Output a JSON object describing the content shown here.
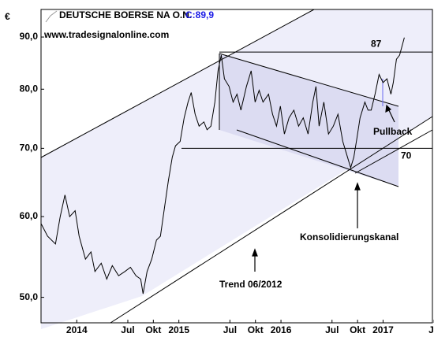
{
  "chart_data": {
    "type": "line",
    "currency": "€",
    "title": "DEUTSCHE BOERSE NA O.N.",
    "last_label": "C:89,9",
    "subtitle": "www.tradesignalonline.com",
    "color": "#000000",
    "log_scale": true,
    "x": [
      -4.17,
      -3.43,
      -2.5,
      -1.95,
      -1.39,
      -0.83,
      -0.19,
      0.28,
      1.02,
      1.67,
      2.13,
      2.88,
      3.53,
      4.17,
      4.92,
      5.66,
      6.31,
      6.96,
      7.51,
      7.79,
      8.26,
      8.81,
      9.37,
      9.83,
      10.3,
      10.76,
      11.22,
      11.6,
      12.15,
      12.62,
      13.08,
      13.45,
      13.91,
      14.38,
      14.94,
      15.31,
      15.77,
      16.23,
      16.6,
      16.98,
      17.35,
      17.9,
      18.37,
      18.83,
      19.29,
      19.94,
      20.5,
      20.96,
      21.43,
      21.89,
      22.54,
      23.01,
      23.47,
      23.93,
      24.4,
      24.95,
      25.51,
      26.07,
      26.62,
      27.18,
      27.74,
      28.11,
      28.48,
      29.04,
      29.59,
      30.15,
      30.7,
      31.26,
      31.82,
      32.19,
      32.56,
      32.93,
      33.3,
      33.86,
      34.23,
      34.6,
      35.06,
      35.53,
      35.99,
      36.46,
      36.92,
      37.2,
      37.57,
      37.94,
      38.31,
      38.5
    ],
    "values": [
      59.0,
      57.4,
      56.4,
      60.0,
      63.0,
      60.0,
      60.8,
      57.4,
      54.5,
      55.4,
      53.0,
      54.0,
      52.1,
      53.7,
      52.5,
      53.0,
      53.5,
      52.5,
      52.1,
      50.4,
      53.0,
      54.5,
      56.9,
      57.4,
      61.1,
      65.0,
      68.6,
      70.4,
      71.1,
      75.0,
      77.7,
      79.4,
      75.6,
      73.6,
      74.3,
      73.0,
      73.6,
      77.7,
      83.4,
      86.4,
      81.9,
      80.5,
      77.7,
      79.1,
      76.3,
      80.5,
      83.4,
      77.7,
      79.8,
      77.7,
      79.1,
      75.6,
      73.6,
      77.0,
      72.3,
      75.0,
      76.3,
      73.6,
      75.0,
      72.3,
      77.7,
      80.5,
      73.6,
      77.7,
      72.3,
      73.6,
      75.6,
      71.1,
      68.6,
      67.0,
      68.6,
      71.7,
      75.0,
      77.7,
      76.3,
      76.3,
      79.1,
      82.7,
      81.2,
      81.9,
      79.1,
      81.2,
      85.6,
      86.4,
      88.7,
      89.9
    ],
    "xlim": [
      -4.2,
      41.8
    ],
    "xticks": [
      {
        "value": 0,
        "label": "2014"
      },
      {
        "value": 6,
        "label": "Jul"
      },
      {
        "value": 9,
        "label": "Okt"
      },
      {
        "value": 12,
        "label": "2015"
      },
      {
        "value": 18,
        "label": "Jul"
      },
      {
        "value": 21,
        "label": "Okt"
      },
      {
        "value": 24,
        "label": "2016"
      },
      {
        "value": 30,
        "label": "Jul"
      },
      {
        "value": 33,
        "label": "Okt"
      },
      {
        "value": 36,
        "label": "2017"
      },
      {
        "value": 42,
        "label": "Ju"
      }
    ],
    "ylim": [
      47.2,
      93.1
    ],
    "yticks": [
      {
        "value": 50,
        "label": "50,0"
      },
      {
        "value": 60,
        "label": "60,0"
      },
      {
        "value": 70,
        "label": "70,0"
      },
      {
        "value": 80,
        "label": "80,0"
      },
      {
        "value": 90,
        "label": "90,0"
      }
    ],
    "levels": [
      87,
      70
    ],
    "annotations": [
      "Pullback",
      "Konsolidierungskanal",
      "Trend 06/2012"
    ]
  }
}
